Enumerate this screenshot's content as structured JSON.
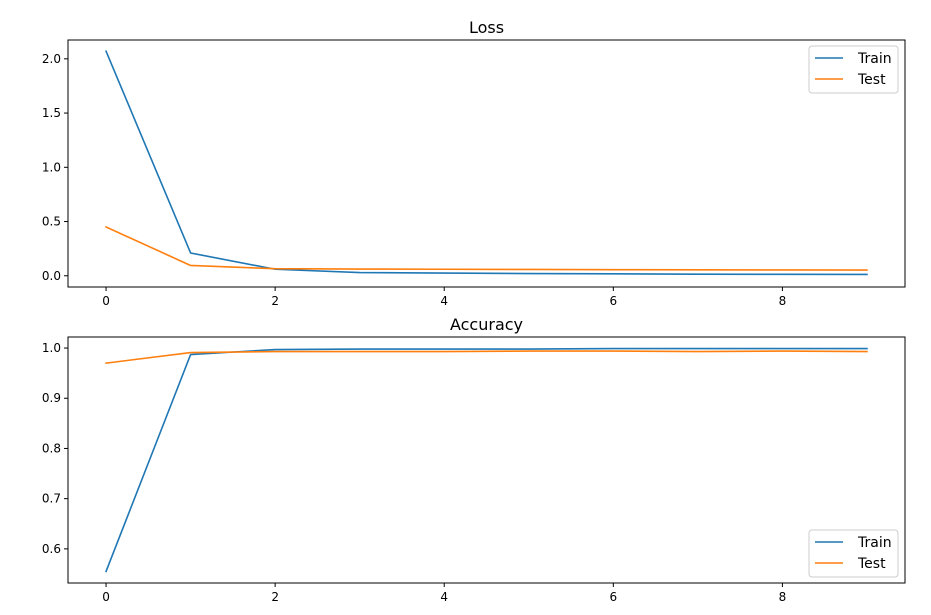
{
  "colors": {
    "train": "#1f77b4",
    "test": "#ff7f0e"
  },
  "chart_data": [
    {
      "type": "line",
      "title": "Loss",
      "xlabel": "",
      "ylabel": "",
      "xlim": [
        -0.45,
        9.45
      ],
      "ylim": [
        -0.1035,
        2.1735
      ],
      "xticks": [
        0,
        2,
        4,
        6,
        8
      ],
      "yticks": [
        0.0,
        0.5,
        1.0,
        1.5,
        2.0
      ],
      "ytick_labels": [
        "0.0",
        "0.5",
        "1.0",
        "1.5",
        "2.0"
      ],
      "grid": false,
      "legend_position": "upper right",
      "x": [
        0,
        1,
        2,
        3,
        4,
        5,
        6,
        7,
        8,
        9
      ],
      "series": [
        {
          "name": "Train",
          "values": [
            2.07,
            0.21,
            0.06,
            0.03,
            0.025,
            0.02,
            0.018,
            0.015,
            0.013,
            0.012
          ]
        },
        {
          "name": "Test",
          "values": [
            0.45,
            0.095,
            0.065,
            0.062,
            0.06,
            0.058,
            0.056,
            0.055,
            0.054,
            0.053
          ]
        }
      ]
    },
    {
      "type": "line",
      "title": "Accuracy",
      "xlabel": "",
      "ylabel": "",
      "xlim": [
        -0.45,
        9.45
      ],
      "ylim": [
        0.532,
        1.022
      ],
      "xticks": [
        0,
        2,
        4,
        6,
        8
      ],
      "yticks": [
        0.6,
        0.7,
        0.8,
        0.9,
        1.0
      ],
      "ytick_labels": [
        "0.6",
        "0.7",
        "0.8",
        "0.9",
        "1.0"
      ],
      "grid": false,
      "legend_position": "lower right",
      "x": [
        0,
        1,
        2,
        3,
        4,
        5,
        6,
        7,
        8,
        9
      ],
      "series": [
        {
          "name": "Train",
          "values": [
            0.555,
            0.987,
            0.997,
            0.998,
            0.998,
            0.998,
            0.999,
            0.999,
            0.999,
            0.999
          ]
        },
        {
          "name": "Test",
          "values": [
            0.97,
            0.991,
            0.993,
            0.993,
            0.993,
            0.994,
            0.994,
            0.993,
            0.994,
            0.993
          ]
        }
      ]
    }
  ]
}
